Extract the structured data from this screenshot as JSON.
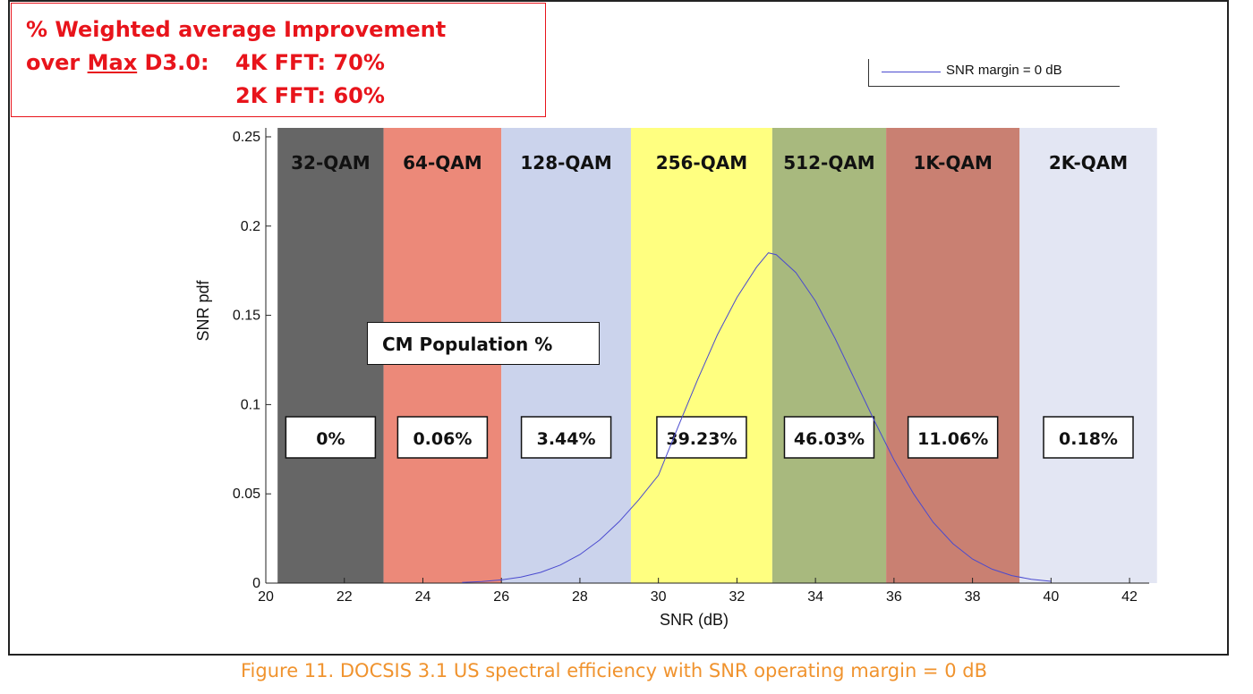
{
  "headline": {
    "line1": "% Weighted average Improvement",
    "prefix_before": "over ",
    "prefix_max": "Max",
    "prefix_after": " D3.0:",
    "fft4k": "4K FFT:  70%",
    "fft2k": "2K FFT:  60%",
    "color": "#e8141b"
  },
  "legend": {
    "label": "SNR margin = 0 dB",
    "color": "#4a4acf"
  },
  "annotation_box": {
    "label": "CM Population %"
  },
  "caption": "Figure 11. DOCSIS 3.1 US spectral efficiency with SNR operating margin = 0 dB",
  "chart_data": {
    "type": "line",
    "xlabel": "SNR (dB)",
    "ylabel": "SNR pdf",
    "xlim": [
      20,
      42.5
    ],
    "ylim": [
      0,
      0.255
    ],
    "xticks": [
      20,
      22,
      24,
      26,
      28,
      30,
      32,
      34,
      36,
      38,
      40,
      42
    ],
    "yticks": [
      0,
      0.05,
      0.1,
      0.15,
      0.2,
      0.25
    ],
    "ytick_labels": [
      "0",
      "0.05",
      "0.1",
      "0.15",
      "0.2",
      "0.25"
    ],
    "grid": false,
    "legend_position": "top-right",
    "series": [
      {
        "name": "SNR margin = 0 dB",
        "color": "#4a4acf",
        "x": [
          25.0,
          25.5,
          26.0,
          26.5,
          27.0,
          27.5,
          28.0,
          28.5,
          29.0,
          29.5,
          30.0,
          30.5,
          31.0,
          31.5,
          32.0,
          32.5,
          32.8,
          33.0,
          33.5,
          34.0,
          34.5,
          35.0,
          35.5,
          36.0,
          36.5,
          37.0,
          37.5,
          38.0,
          38.5,
          39.0,
          39.5,
          40.0
        ],
        "y": [
          0.0004,
          0.0009,
          0.0018,
          0.0034,
          0.006,
          0.0101,
          0.016,
          0.0241,
          0.0344,
          0.0467,
          0.0604,
          0.0875,
          0.114,
          0.139,
          0.16,
          0.177,
          0.185,
          0.184,
          0.174,
          0.158,
          0.137,
          0.114,
          0.091,
          0.069,
          0.05,
          0.034,
          0.0221,
          0.0135,
          0.0078,
          0.0042,
          0.0021,
          0.001
        ]
      }
    ],
    "bands": [
      {
        "label": "32-QAM",
        "x_start": 20.3,
        "x_end": 23.0,
        "color": "#666666",
        "percent": "0%"
      },
      {
        "label": "64-QAM",
        "x_start": 23.0,
        "x_end": 26.0,
        "color": "#ec8979",
        "percent": "0.06%"
      },
      {
        "label": "128-QAM",
        "x_start": 26.0,
        "x_end": 29.3,
        "color": "#cbd3ec",
        "percent": "3.44%"
      },
      {
        "label": "256-QAM",
        "x_start": 29.3,
        "x_end": 32.9,
        "color": "#ffff80",
        "percent": "39.23%"
      },
      {
        "label": "512-QAM",
        "x_start": 32.9,
        "x_end": 35.8,
        "color": "#a8b97e",
        "percent": "46.03%"
      },
      {
        "label": "1K-QAM",
        "x_start": 35.8,
        "x_end": 39.2,
        "color": "#c98072",
        "percent": "11.06%"
      },
      {
        "label": "2K-QAM",
        "x_start": 39.2,
        "x_end": 42.7,
        "color": "#e3e6f3",
        "percent": "0.18%"
      }
    ]
  }
}
